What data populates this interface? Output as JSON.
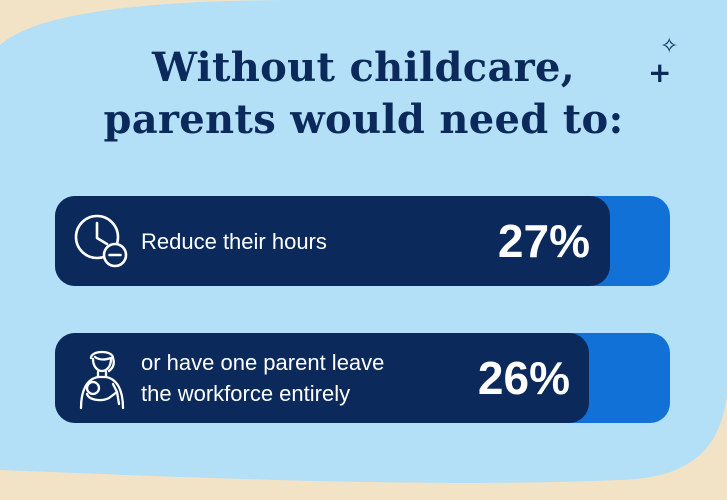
{
  "title": {
    "line1": "Without childcare,",
    "line2": "parents would need to:"
  },
  "rows": [
    {
      "label_lines": [
        "Reduce their hours"
      ],
      "percent_label": "27%",
      "value": 27,
      "icon": "clock-minus-icon"
    },
    {
      "label_lines": [
        "or have one parent leave",
        "the workforce entirely"
      ],
      "percent_label": "26%",
      "value": 26,
      "icon": "parent-holding-baby-icon"
    }
  ],
  "colors": {
    "page_accent": "#f3e3c6",
    "panel": "#b3e0f7",
    "bar_dark": "#0b2a5b",
    "bar_track": "#1171d6",
    "title_text": "#0b2a5b",
    "row_text": "#ffffff"
  }
}
